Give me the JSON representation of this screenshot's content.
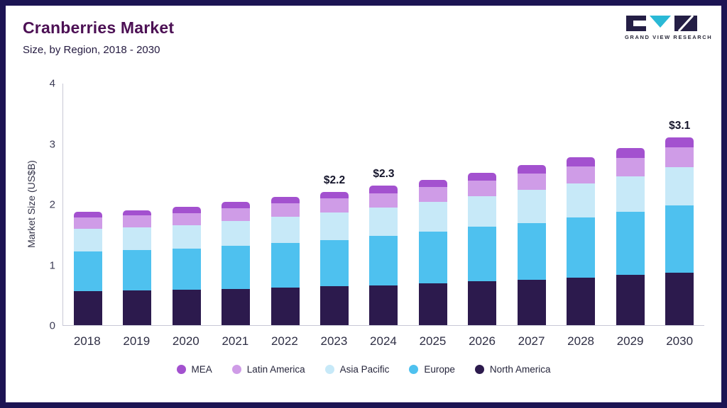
{
  "header": {
    "title": "Cranberries Market",
    "subtitle": "Size, by Region, 2018 - 2030",
    "brand": "GRAND VIEW RESEARCH"
  },
  "brand_colors": {
    "dark": "#241e45",
    "teal": "#2ab9d6"
  },
  "chart_data": {
    "type": "bar",
    "stacked": true,
    "title": "Cranberries Market",
    "subtitle": "Size, by Region, 2018 - 2030",
    "ylabel": "Market Size (US$B)",
    "ylim": [
      0,
      4
    ],
    "yticks": [
      0,
      1,
      2,
      3,
      4
    ],
    "grid": false,
    "legend_position": "bottom",
    "categories": [
      "2018",
      "2019",
      "2020",
      "2021",
      "2022",
      "2023",
      "2024",
      "2025",
      "2026",
      "2027",
      "2028",
      "2029",
      "2030"
    ],
    "series": [
      {
        "name": "North America",
        "color": "#2c1a4d",
        "values": [
          0.56,
          0.57,
          0.58,
          0.6,
          0.62,
          0.64,
          0.66,
          0.69,
          0.72,
          0.75,
          0.79,
          0.83,
          0.87
        ]
      },
      {
        "name": "Europe",
        "color": "#4ec1ef",
        "values": [
          0.66,
          0.67,
          0.68,
          0.71,
          0.74,
          0.77,
          0.81,
          0.85,
          0.9,
          0.94,
          0.99,
          1.04,
          1.11
        ]
      },
      {
        "name": "Asia Pacific",
        "color": "#c7e9f8",
        "values": [
          0.37,
          0.38,
          0.39,
          0.41,
          0.43,
          0.45,
          0.47,
          0.49,
          0.51,
          0.54,
          0.56,
          0.59,
          0.63
        ]
      },
      {
        "name": "Latin America",
        "color": "#cf9ce7",
        "values": [
          0.19,
          0.19,
          0.2,
          0.21,
          0.22,
          0.23,
          0.24,
          0.25,
          0.26,
          0.27,
          0.28,
          0.3,
          0.32
        ]
      },
      {
        "name": "MEA",
        "color": "#a351cf",
        "values": [
          0.09,
          0.09,
          0.1,
          0.1,
          0.11,
          0.11,
          0.12,
          0.12,
          0.13,
          0.14,
          0.15,
          0.16,
          0.17
        ]
      }
    ],
    "totals": [
      1.87,
      1.9,
      1.95,
      2.03,
      2.12,
      2.2,
      2.3,
      2.4,
      2.52,
      2.64,
      2.77,
      2.92,
      3.1
    ],
    "annotations": {
      "2023": "$2.2",
      "2024": "$2.3",
      "2030": "$3.1"
    },
    "legend_order": [
      "MEA",
      "Latin America",
      "Asia Pacific",
      "Europe",
      "North America"
    ]
  }
}
